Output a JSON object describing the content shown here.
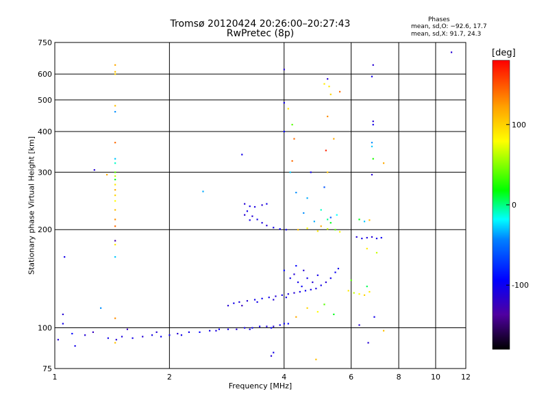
{
  "chart_data": {
    "type": "scatter",
    "title": "Tromsø 20120424 20:26:00–20:27:43",
    "subtitle": "RwPretec (8p)",
    "phases_box": {
      "title": "Phases",
      "o_line": "mean, sd,O:  −92.6, 17.7",
      "x_line": "mean, sd,X:  91.7, 24.3"
    },
    "xlabel": "Frequency [MHz]",
    "ylabel": "Stationary phase Virtual Height [km]",
    "x_scale": "log",
    "y_scale": "log",
    "xlim": [
      1,
      12
    ],
    "ylim": [
      75,
      750
    ],
    "x_ticks": [
      1,
      2,
      4,
      6,
      8,
      10,
      12
    ],
    "y_ticks": [
      75,
      100,
      200,
      300,
      400,
      500,
      600,
      750
    ],
    "grid": true,
    "colorbar": {
      "label": "[deg]",
      "range": [
        -180,
        180
      ],
      "ticks": [
        -100,
        0,
        100
      ],
      "colors": [
        "#000000",
        "#5000a0",
        "#0000ff",
        "#0080ff",
        "#00ffff",
        "#00ff00",
        "#ffff00",
        "#ffa000",
        "#ff0000"
      ]
    },
    "series": [
      {
        "points": [
          [
            1.02,
            92,
            -110
          ],
          [
            1.11,
            96,
            -90
          ],
          [
            1.13,
            88,
            -100
          ],
          [
            1.2,
            95,
            -110
          ],
          [
            1.26,
            97,
            -120
          ],
          [
            1.38,
            93,
            -100
          ],
          [
            1.45,
            92,
            -110
          ],
          [
            1.5,
            94,
            -105
          ],
          [
            1.6,
            93,
            -100
          ],
          [
            1.7,
            94,
            -110
          ],
          [
            1.8,
            95,
            -100
          ],
          [
            1.9,
            94,
            -95
          ],
          [
            2.0,
            95,
            -100
          ],
          [
            2.1,
            96,
            -110
          ],
          [
            2.25,
            97,
            -100
          ],
          [
            2.4,
            97,
            -90
          ],
          [
            2.55,
            98,
            -100
          ],
          [
            2.7,
            99,
            -95
          ],
          [
            2.85,
            99,
            -100
          ],
          [
            3.0,
            99,
            -110
          ],
          [
            3.15,
            100,
            -100
          ],
          [
            3.3,
            100,
            -95
          ],
          [
            3.45,
            101,
            -100
          ],
          [
            3.6,
            101,
            -105
          ],
          [
            3.75,
            101,
            -110
          ],
          [
            3.9,
            102,
            -100
          ],
          [
            4.0,
            103,
            -95
          ],
          [
            4.1,
            103,
            -90
          ],
          [
            1.55,
            99,
            -120
          ],
          [
            1.85,
            97,
            -110
          ],
          [
            2.15,
            95,
            -100
          ],
          [
            2.65,
            98,
            -105
          ],
          [
            3.25,
            99,
            -100
          ],
          [
            3.7,
            100,
            -90
          ],
          [
            2.85,
            117,
            -110
          ],
          [
            2.95,
            119,
            -100
          ],
          [
            3.05,
            120,
            -105
          ],
          [
            3.2,
            121,
            -110
          ],
          [
            3.35,
            122,
            -100
          ],
          [
            3.5,
            123,
            -95
          ],
          [
            3.65,
            124,
            -100
          ],
          [
            3.8,
            125,
            -110
          ],
          [
            3.95,
            126,
            -100
          ],
          [
            4.1,
            127,
            -105
          ],
          [
            4.25,
            128,
            -110
          ],
          [
            4.4,
            129,
            -100
          ],
          [
            4.55,
            130,
            -95
          ],
          [
            4.7,
            131,
            -100
          ],
          [
            4.85,
            132,
            -105
          ],
          [
            5.0,
            135,
            -100
          ],
          [
            5.15,
            138,
            -110
          ],
          [
            5.3,
            142,
            -100
          ],
          [
            5.45,
            148,
            -95
          ],
          [
            5.55,
            152,
            -100
          ],
          [
            3.1,
            117,
            -120
          ],
          [
            3.4,
            120,
            -100
          ],
          [
            3.75,
            122,
            -110
          ],
          [
            4.05,
            124,
            -100
          ],
          [
            4.0,
            150,
            -90
          ],
          [
            4.15,
            142,
            -100
          ],
          [
            4.25,
            146,
            -110
          ],
          [
            4.35,
            138,
            -100
          ],
          [
            4.45,
            134,
            -95
          ],
          [
            4.6,
            142,
            -100
          ],
          [
            4.75,
            138,
            -110
          ],
          [
            4.9,
            145,
            -100
          ],
          [
            4.3,
            155,
            -90
          ],
          [
            4.5,
            150,
            -110
          ],
          [
            3.15,
            240,
            -110
          ],
          [
            3.25,
            236,
            -100
          ],
          [
            3.35,
            235,
            -105
          ],
          [
            3.5,
            238,
            -110
          ],
          [
            3.6,
            240,
            -100
          ],
          [
            3.2,
            228,
            -100
          ],
          [
            3.3,
            220,
            -110
          ],
          [
            3.4,
            215,
            -100
          ],
          [
            3.5,
            210,
            -105
          ],
          [
            3.6,
            206,
            -110
          ],
          [
            3.75,
            203,
            -100
          ],
          [
            3.9,
            201,
            -95
          ],
          [
            4.05,
            200,
            -100
          ],
          [
            3.15,
            222,
            -110
          ],
          [
            3.25,
            214,
            -100
          ],
          [
            6.2,
            190,
            -110
          ],
          [
            6.4,
            188,
            -100
          ],
          [
            6.6,
            189,
            -105
          ],
          [
            6.8,
            190,
            -110
          ],
          [
            7.0,
            188,
            -100
          ],
          [
            7.2,
            189,
            -95
          ],
          [
            4.35,
            200,
            120
          ],
          [
            4.6,
            202,
            90
          ],
          [
            4.9,
            198,
            100
          ],
          [
            5.2,
            201,
            80
          ],
          [
            5.45,
            200,
            60
          ],
          [
            5.6,
            197,
            90
          ],
          [
            5.3,
            210,
            40
          ],
          [
            5.0,
            205,
            130
          ],
          [
            5.9,
            130,
            100
          ],
          [
            6.1,
            128,
            80
          ],
          [
            6.3,
            127,
            90
          ],
          [
            6.5,
            126,
            110
          ],
          [
            6.7,
            129,
            100
          ],
          [
            6.0,
            140,
            60
          ],
          [
            6.6,
            134,
            30
          ],
          [
            5.2,
            215,
            20
          ],
          [
            5.5,
            222,
            0
          ],
          [
            5.0,
            230,
            10
          ],
          [
            4.8,
            212,
            -30
          ],
          [
            5.3,
            218,
            -60
          ],
          [
            4.5,
            225,
            -40
          ],
          [
            6.3,
            215,
            40
          ],
          [
            6.5,
            212,
            -20
          ],
          [
            6.7,
            214,
            120
          ],
          [
            6.6,
            175,
            100
          ],
          [
            7.0,
            170,
            80
          ],
          [
            4.6,
            115,
            110
          ],
          [
            4.9,
            112,
            90
          ],
          [
            5.1,
            118,
            60
          ],
          [
            4.3,
            108,
            130
          ],
          [
            5.4,
            110,
            40
          ],
          [
            1.44,
            640,
            130
          ],
          [
            1.44,
            610,
            120
          ],
          [
            1.44,
            600,
            110
          ],
          [
            1.44,
            480,
            120
          ],
          [
            1.44,
            460,
            -40
          ],
          [
            1.44,
            370,
            150
          ],
          [
            1.44,
            330,
            -20
          ],
          [
            1.44,
            320,
            10
          ],
          [
            1.44,
            300,
            60
          ],
          [
            1.44,
            292,
            80
          ],
          [
            1.44,
            285,
            40
          ],
          [
            1.44,
            275,
            100
          ],
          [
            1.44,
            265,
            130
          ],
          [
            1.44,
            255,
            110
          ],
          [
            1.44,
            245,
            90
          ],
          [
            1.44,
            230,
            120
          ],
          [
            1.44,
            215,
            140
          ],
          [
            1.44,
            205,
            150
          ],
          [
            1.44,
            185,
            -130
          ],
          [
            1.44,
            180,
            100
          ],
          [
            1.44,
            165,
            -20
          ],
          [
            1.44,
            107,
            140
          ],
          [
            1.44,
            90,
            120
          ],
          [
            1.27,
            305,
            -110
          ],
          [
            1.37,
            295,
            130
          ],
          [
            1.06,
            165,
            -100
          ],
          [
            1.32,
            115,
            -40
          ],
          [
            1.05,
            110,
            -110
          ],
          [
            1.05,
            103,
            -100
          ],
          [
            2.45,
            262,
            -30
          ],
          [
            3.1,
            340,
            -100
          ],
          [
            4.0,
            620,
            -110
          ],
          [
            4.0,
            490,
            -100
          ],
          [
            4.0,
            400,
            -90
          ],
          [
            4.1,
            470,
            100
          ],
          [
            4.2,
            420,
            60
          ],
          [
            4.25,
            380,
            150
          ],
          [
            4.15,
            300,
            -20
          ],
          [
            4.3,
            260,
            -40
          ],
          [
            4.2,
            325,
            150
          ],
          [
            4.6,
            250,
            -30
          ],
          [
            4.7,
            300,
            -100
          ],
          [
            5.2,
            580,
            -110
          ],
          [
            5.1,
            560,
            100
          ],
          [
            5.25,
            550,
            100
          ],
          [
            5.3,
            520,
            110
          ],
          [
            5.6,
            530,
            150
          ],
          [
            5.2,
            445,
            140
          ],
          [
            5.4,
            380,
            130
          ],
          [
            5.15,
            350,
            170
          ],
          [
            5.2,
            300,
            120
          ],
          [
            5.1,
            270,
            -60
          ],
          [
            6.85,
            640,
            -110
          ],
          [
            6.8,
            590,
            -100
          ],
          [
            6.85,
            430,
            -110
          ],
          [
            6.85,
            420,
            -100
          ],
          [
            6.8,
            370,
            -40
          ],
          [
            6.8,
            360,
            -20
          ],
          [
            6.85,
            330,
            50
          ],
          [
            6.8,
            295,
            -110
          ],
          [
            7.3,
            320,
            130
          ],
          [
            6.65,
            90,
            -110
          ],
          [
            7.3,
            98,
            120
          ],
          [
            6.9,
            108,
            -100
          ],
          [
            11.0,
            700,
            -110
          ],
          [
            3.7,
            82,
            -110
          ],
          [
            4.85,
            80,
            120
          ],
          [
            3.75,
            84,
            -100
          ],
          [
            6.3,
            102,
            -110
          ]
        ]
      }
    ]
  }
}
